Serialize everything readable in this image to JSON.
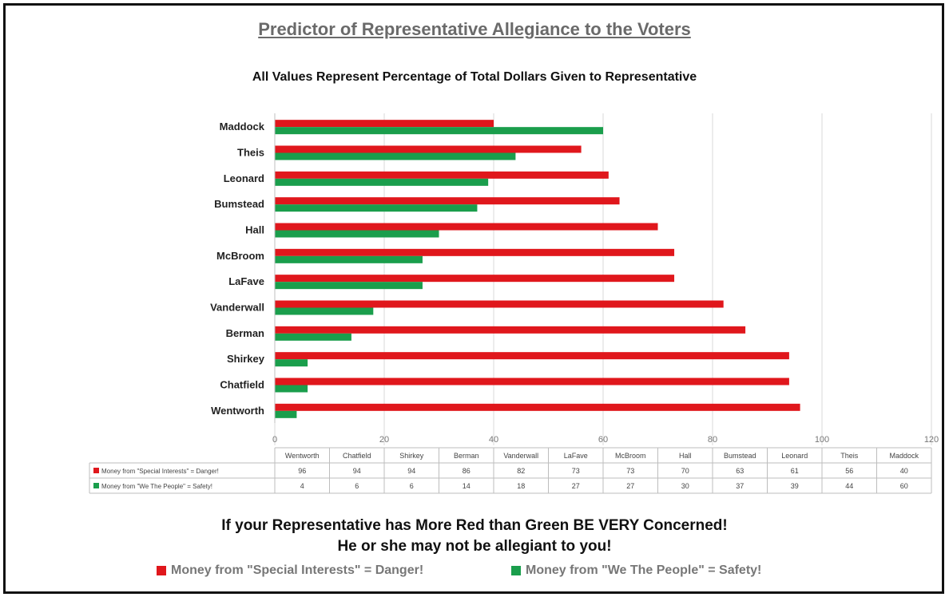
{
  "title": "Predictor of Representative  Allegiance to the Voters",
  "subtitle": "All Values Represent Percentage of Total Dollars Given to Representative",
  "warning_line1": "If your Representative has More Red than Green BE VERY Concerned!",
  "warning_line2": "He or she may not be allegiant to you!",
  "legend": [
    {
      "label": "Money from \"Special Interests\" = Danger!",
      "color": "#e0171c"
    },
    {
      "label": "Money from \"We The People\" = Safety!",
      "color": "#1a9e4c"
    }
  ],
  "chart_data": {
    "type": "bar",
    "orientation": "horizontal",
    "categories": [
      "Wentworth",
      "Chatfield",
      "Shirkey",
      "Berman",
      "Vanderwall",
      "LaFave",
      "McBroom",
      "Hall",
      "Bumstead",
      "Leonard",
      "Theis",
      "Maddock"
    ],
    "series": [
      {
        "name": "Money from \"Special Interests\" = Danger!",
        "color": "#e0171c",
        "values": [
          96,
          94,
          94,
          86,
          82,
          73,
          73,
          70,
          63,
          61,
          56,
          40
        ]
      },
      {
        "name": "Money from \"We The People\" = Safety!",
        "color": "#1a9e4c",
        "values": [
          4,
          6,
          6,
          14,
          18,
          27,
          27,
          30,
          37,
          39,
          44,
          60
        ]
      }
    ],
    "xlim": [
      0,
      120
    ],
    "xticks": [
      0,
      20,
      40,
      60,
      80,
      100,
      120
    ],
    "grid": true,
    "data_table": true
  }
}
